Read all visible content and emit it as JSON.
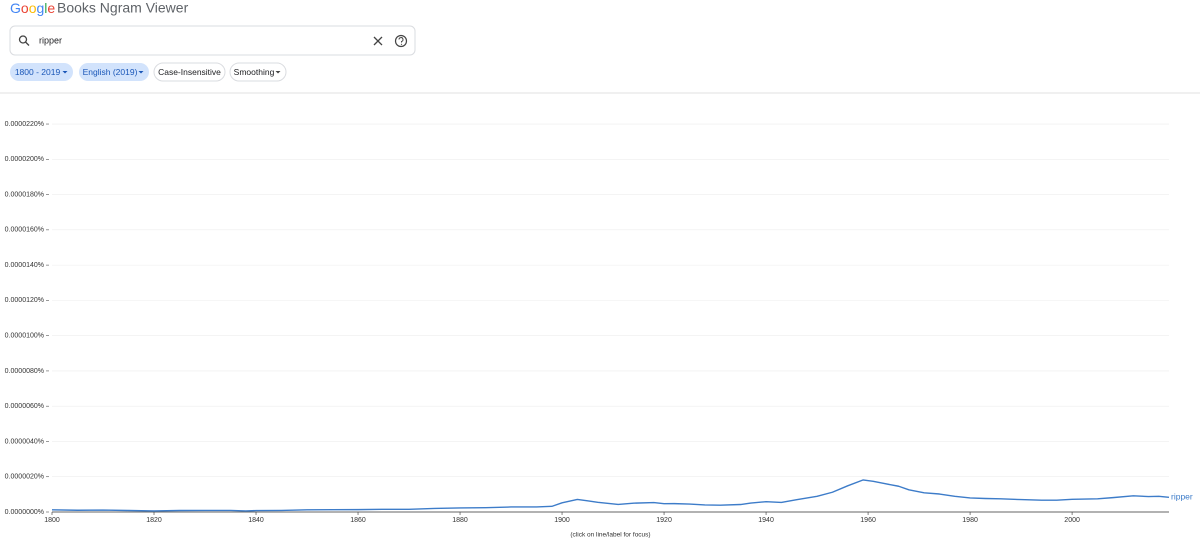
{
  "ui": {
    "logo": "Google",
    "product": "Books Ngram Viewer",
    "search": "ripper",
    "chips": [
      "1800 - 2019",
      "English (2019)",
      "Case-Insensitive",
      "Smoothing"
    ]
  },
  "chart_data": {
    "type": "line",
    "x": [
      1800,
      1805,
      1810,
      1815,
      1820,
      1825,
      1830,
      1835,
      1838,
      1840,
      1845,
      1850,
      1855,
      1860,
      1865,
      1870,
      1875,
      1880,
      1885,
      1890,
      1895,
      1898,
      1900,
      1903,
      1905,
      1907,
      1911,
      1914,
      1918,
      1920,
      1922,
      1925,
      1928,
      1931,
      1935,
      1937,
      1940,
      1943,
      1946,
      1950,
      1953,
      1956,
      1959,
      1961,
      1963,
      1966,
      1968,
      1971,
      1974,
      1977,
      1980,
      1983,
      1986,
      1990,
      1994,
      1997,
      2000,
      2005,
      2008,
      2012,
      2015,
      2017,
      2019
    ],
    "series": [
      {
        "name": "ripper",
        "color": "#3d7cc9",
        "values": [
          1.25e-07,
          1e-07,
          1.1e-07,
          8.5e-08,
          6e-08,
          8.5e-08,
          9e-08,
          9e-08,
          6e-08,
          8e-08,
          9e-08,
          1.25e-07,
          1.3e-07,
          1.35e-07,
          1.55e-07,
          1.55e-07,
          2e-07,
          2.3e-07,
          2.45e-07,
          2.85e-07,
          2.9e-07,
          3.2e-07,
          5.2e-07,
          7.15e-07,
          6.35e-07,
          5.5e-07,
          4.3e-07,
          5e-07,
          5.35e-07,
          4.7e-07,
          4.75e-07,
          4.5e-07,
          4e-07,
          3.85e-07,
          4.25e-07,
          5.1e-07,
          5.85e-07,
          5.45e-07,
          7e-07,
          8.9e-07,
          1.12e-06,
          1.485e-06,
          1.815e-06,
          1.74e-06,
          1.625e-06,
          1.46e-06,
          1.26e-06,
          1.09e-06,
          1.02e-06,
          8.9e-07,
          7.95e-07,
          7.65e-07,
          7.45e-07,
          7.05e-07,
          6.7e-07,
          6.7e-07,
          7.2e-07,
          7.45e-07,
          8.15e-07,
          9.15e-07,
          8.75e-07,
          8.9e-07,
          8.3e-07
        ]
      }
    ],
    "xlim": [
      1800,
      2019
    ],
    "xticks": [
      1800,
      1820,
      1840,
      1860,
      1880,
      1900,
      1920,
      1940,
      1960,
      1980,
      2000
    ],
    "ylim": [
      0,
      2.3e-05
    ],
    "yticks": [
      {
        "value": 0,
        "label": "0.0000000%"
      },
      {
        "value": 2e-06,
        "label": "0.0000020%"
      },
      {
        "value": 4e-06,
        "label": "0.0000040%"
      },
      {
        "value": 6e-06,
        "label": "0.0000060%"
      },
      {
        "value": 8e-06,
        "label": "0.0000080%"
      },
      {
        "value": 1e-05,
        "label": "0.0000100%"
      },
      {
        "value": 1.2e-05,
        "label": "0.0000120%"
      },
      {
        "value": 1.4e-05,
        "label": "0.0000140%"
      },
      {
        "value": 1.6e-05,
        "label": "0.0000160%"
      },
      {
        "value": 1.8e-05,
        "label": "0.0000180%"
      },
      {
        "value": 2e-05,
        "label": "0.0000200%"
      },
      {
        "value": 2.2e-05,
        "label": "0.0000220%"
      }
    ],
    "grid": true,
    "footnote": "(click on line/label for focus)"
  }
}
